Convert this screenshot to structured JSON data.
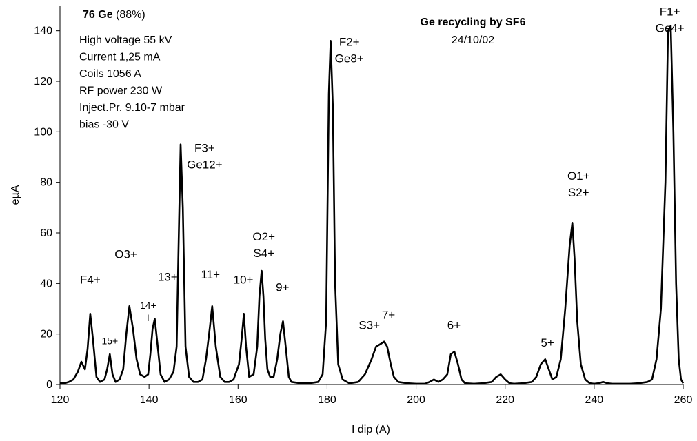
{
  "chart_data": {
    "type": "line",
    "xlabel": "I dip (A)",
    "ylabel": "eµA",
    "xlim": [
      120,
      260
    ],
    "ylim": [
      0,
      150
    ],
    "x_ticks": [
      120,
      140,
      160,
      180,
      200,
      220,
      240,
      260
    ],
    "y_ticks": [
      0,
      20,
      40,
      60,
      80,
      100,
      120,
      140
    ],
    "grid": false,
    "title": "Ge recycling by SF6",
    "subtitle": "24/10/02",
    "info": {
      "isotope_bold": "76 Ge",
      "isotope_pct": " (88%)",
      "lines": [
        "High voltage 55 kV",
        "Current 1,25 mA",
        "Coils 1056 A",
        "RF power 230 W",
        "Inject.Pr. 9.10-7 mbar",
        "bias -30 V"
      ]
    },
    "annotations": [
      {
        "lines": [
          "F4+"
        ],
        "x": 126.8,
        "y": 40
      },
      {
        "lines": [
          "15+"
        ],
        "x": 131.2,
        "y": 16,
        "small": true
      },
      {
        "lines": [
          "O3+"
        ],
        "x": 134.8,
        "y": 50
      },
      {
        "lines": [
          "14+",
          "I"
        ],
        "x": 139.8,
        "y": 30,
        "small": true
      },
      {
        "lines": [
          "13+"
        ],
        "x": 144.2,
        "y": 41
      },
      {
        "lines": [
          "F3+",
          "Ge12+"
        ],
        "x": 152.5,
        "y": 92
      },
      {
        "lines": [
          "11+"
        ],
        "x": 153.8,
        "y": 42
      },
      {
        "lines": [
          "10+"
        ],
        "x": 161.2,
        "y": 40
      },
      {
        "lines": [
          "O2+",
          "S4+"
        ],
        "x": 165.8,
        "y": 57
      },
      {
        "lines": [
          "9+"
        ],
        "x": 170.0,
        "y": 37
      },
      {
        "lines": [
          "F2+",
          "Ge8+"
        ],
        "x": 185.0,
        "y": 134
      },
      {
        "lines": [
          "S3+"
        ],
        "x": 189.5,
        "y": 22
      },
      {
        "lines": [
          "7+"
        ],
        "x": 193.8,
        "y": 26
      },
      {
        "lines": [
          "6+"
        ],
        "x": 208.5,
        "y": 22
      },
      {
        "lines": [
          "5+"
        ],
        "x": 229.5,
        "y": 15
      },
      {
        "lines": [
          "O1+",
          "S2+"
        ],
        "x": 236.5,
        "y": 81
      },
      {
        "lines": [
          "F1+",
          "Ge4+"
        ],
        "x": 257.0,
        "y": 146
      }
    ],
    "series": [
      {
        "color": "#000000",
        "x": [
          120,
          121,
          122,
          123,
          124,
          124.8,
          125.6,
          126.2,
          126.8,
          127.4,
          128.2,
          129,
          130,
          130.6,
          131.2,
          131.8,
          132.5,
          133.4,
          134.2,
          134.9,
          135.6,
          136.4,
          137.2,
          138,
          139,
          139.8,
          140.3,
          140.8,
          141.3,
          141.9,
          142.6,
          143.5,
          144.5,
          145.5,
          146.2,
          146.7,
          147.1,
          147.6,
          148.2,
          149,
          150,
          151,
          152,
          152.8,
          153.5,
          154.2,
          155,
          156,
          157,
          158,
          159,
          160.2,
          160.8,
          161.3,
          161.8,
          162.5,
          163.5,
          164.3,
          164.8,
          165.3,
          165.7,
          166.1,
          166.6,
          167.2,
          168,
          168.8,
          169.5,
          170.1,
          170.7,
          171.4,
          172,
          174,
          176,
          178,
          179,
          179.8,
          180.4,
          180.8,
          181.3,
          181.8,
          182.5,
          183.5,
          185,
          187,
          188.5,
          190,
          191,
          192,
          192.8,
          193.5,
          194.3,
          195,
          196,
          198,
          200,
          202,
          203,
          204,
          205,
          206,
          207,
          207.8,
          208.6,
          209.4,
          210.2,
          211,
          213,
          215,
          217,
          218,
          219,
          220,
          221,
          222,
          224,
          226,
          227,
          228,
          229,
          229.8,
          230.6,
          231.5,
          232.5,
          233.5,
          234.5,
          235.1,
          235.6,
          236.2,
          237,
          238,
          239,
          240,
          241,
          242,
          243,
          244,
          246,
          248,
          250,
          252,
          253,
          254,
          255,
          256,
          256.6,
          257.2,
          257.8,
          258.4,
          259,
          259.5,
          260
        ],
        "y": [
          0.5,
          0.5,
          1,
          2,
          5,
          9,
          6,
          14,
          28,
          18,
          3,
          1,
          2,
          6,
          12,
          4,
          1,
          2,
          6,
          20,
          31,
          22,
          10,
          4,
          3,
          4,
          12,
          22,
          26,
          16,
          4,
          1,
          2,
          5,
          15,
          60,
          95,
          70,
          15,
          3,
          1,
          1,
          2,
          10,
          20,
          31,
          15,
          3,
          1,
          1,
          2,
          8,
          18,
          28,
          15,
          3,
          4,
          15,
          35,
          45,
          35,
          18,
          6,
          3,
          3,
          10,
          20,
          25,
          15,
          3,
          1,
          0.5,
          0.5,
          1,
          4,
          25,
          115,
          136,
          110,
          40,
          8,
          2,
          0.5,
          1,
          4,
          10,
          15,
          16,
          17,
          15,
          8,
          3,
          1,
          0.5,
          0.3,
          0.3,
          1,
          2,
          1,
          2,
          4,
          12,
          13,
          8,
          2,
          0.5,
          0.3,
          0.5,
          1,
          3,
          4,
          2,
          0.5,
          0.3,
          0.5,
          1,
          3,
          8,
          10,
          6,
          2,
          3,
          10,
          30,
          55,
          64,
          50,
          25,
          8,
          2,
          0.5,
          0.3,
          0.5,
          1,
          0.5,
          0.3,
          0.3,
          0.3,
          0.5,
          1,
          2,
          10,
          30,
          80,
          140,
          142,
          100,
          40,
          10,
          2,
          0.5
        ]
      }
    ]
  }
}
